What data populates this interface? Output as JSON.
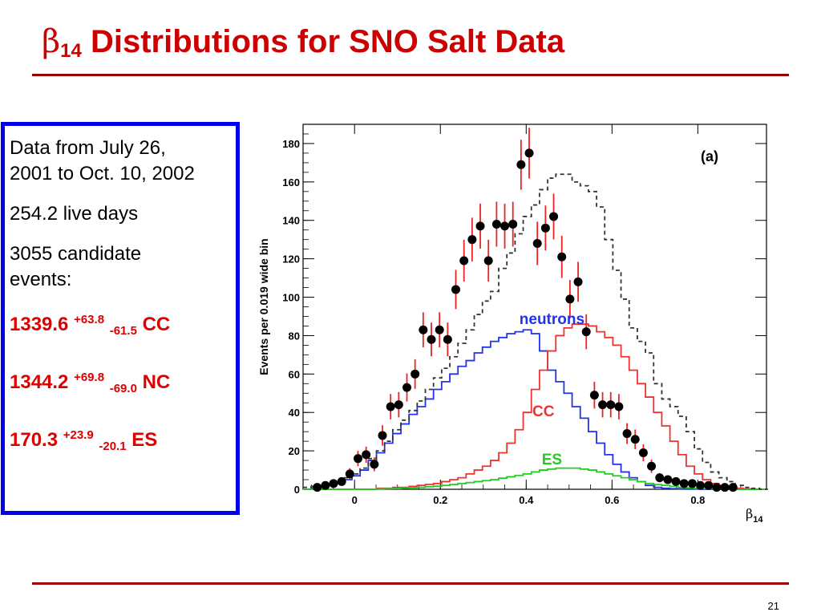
{
  "slide": {
    "title_symbol": "β",
    "title_subscript": "14",
    "title_text": " Distributions for SNO Salt Data",
    "page_number": "21"
  },
  "info_box": {
    "line1": "Data from July 26,",
    "line2": "2001 to Oct. 10, 2002",
    "live_days": "254.2 live days",
    "candidates_line1": "3055 candidate",
    "candidates_line2": "events:",
    "results": [
      {
        "value": "1339.6",
        "plus": "+63.8",
        "minus": "-61.5",
        "label": "CC"
      },
      {
        "value": "1344.2",
        "plus": "+69.8",
        "minus": "-69.0",
        "label": "NC"
      },
      {
        "value": "170.3",
        "plus": "+23.9",
        "minus": "-20.1",
        "label": "ES"
      }
    ]
  },
  "chart_data": {
    "type": "line",
    "panel_label": "(a)",
    "xlabel": "β",
    "xlabel_sub": "14",
    "ylabel": "Events per 0.019 wide bin",
    "xlim": [
      -0.12,
      0.96
    ],
    "ylim": [
      0,
      190
    ],
    "x_ticks": [
      "0",
      "0.2",
      "0.4",
      "0.6",
      "0.8"
    ],
    "x_tick_values": [
      0,
      0.2,
      0.4,
      0.6,
      0.8
    ],
    "y_ticks": [
      "0",
      "20",
      "40",
      "60",
      "80",
      "100",
      "120",
      "140",
      "160",
      "180"
    ],
    "y_tick_values": [
      0,
      20,
      40,
      60,
      80,
      100,
      120,
      140,
      160,
      180
    ],
    "bin_edges_start": -0.12,
    "bin_width": 0.019,
    "colors": {
      "total": "#333333",
      "neutrons": "#2233ee",
      "cc": "#ee3333",
      "es": "#22cc22",
      "data": "#000000",
      "errorbar": "#ee2222"
    },
    "series": [
      {
        "name": "neutrons",
        "values": [
          0,
          0.5,
          1,
          2,
          3,
          5,
          7,
          10,
          15,
          19,
          24,
          29,
          34,
          39,
          43,
          47,
          52,
          56,
          60,
          64,
          67,
          71,
          74,
          77,
          79,
          81,
          82,
          83,
          81,
          72,
          62,
          56,
          50,
          43,
          37,
          30,
          24,
          18,
          13,
          9,
          6,
          4,
          2,
          1,
          0.5,
          0.3,
          0.2,
          0.1,
          0.1,
          0,
          0,
          0,
          0,
          0,
          0,
          0,
          0
        ]
      },
      {
        "name": "CC",
        "values": [
          0,
          0,
          0,
          0,
          0,
          0,
          0,
          0,
          0,
          0.5,
          0.5,
          1,
          1,
          1.5,
          2,
          2.5,
          3,
          4,
          5,
          6,
          8,
          10,
          12,
          15,
          19,
          24,
          31,
          40,
          52,
          62,
          72,
          80,
          84,
          86,
          86,
          85,
          82,
          79,
          75,
          69,
          62,
          55,
          48,
          40,
          33,
          25,
          18,
          12,
          8,
          5,
          3,
          2,
          1,
          0.5,
          0.2,
          0.1,
          0
        ]
      },
      {
        "name": "ES",
        "values": [
          0,
          0,
          0,
          0,
          0,
          0,
          0,
          0,
          0,
          0.2,
          0.3,
          0.4,
          0.6,
          0.8,
          1,
          1.3,
          1.6,
          2,
          2.5,
          3,
          3.5,
          4,
          4.5,
          5,
          5.8,
          6.5,
          7.2,
          8,
          9,
          10,
          10.5,
          11,
          11,
          11,
          10.5,
          10,
          9,
          8,
          7,
          6,
          5,
          4,
          3,
          2.5,
          2,
          1.5,
          1,
          0.8,
          0.5,
          0.3,
          0.2,
          0.1,
          0,
          0,
          0,
          0,
          0
        ]
      },
      {
        "name": "total",
        "values": [
          1,
          1.5,
          2,
          2.5,
          4,
          6,
          8,
          11,
          16,
          20,
          25,
          31,
          36,
          41,
          46,
          52,
          58,
          63,
          69,
          76,
          83,
          91,
          98,
          103,
          115,
          123,
          133,
          142,
          148,
          156,
          162,
          164,
          164,
          160,
          158,
          155,
          147,
          130,
          114,
          99,
          84,
          77,
          71,
          55,
          47,
          43,
          38,
          30,
          21,
          14,
          9,
          6,
          4,
          2,
          1,
          0.5,
          0
        ]
      },
      {
        "name": "data",
        "x": [
          -0.087,
          -0.068,
          -0.049,
          -0.03,
          -0.011,
          0.008,
          0.027,
          0.046,
          0.065,
          0.084,
          0.103,
          0.122,
          0.141,
          0.16,
          0.179,
          0.198,
          0.217,
          0.236,
          0.255,
          0.274,
          0.293,
          0.312,
          0.331,
          0.35,
          0.369,
          0.388,
          0.407,
          0.426,
          0.445,
          0.464,
          0.483,
          0.502,
          0.521,
          0.54,
          0.559,
          0.578,
          0.597,
          0.616,
          0.635,
          0.654,
          0.673,
          0.692,
          0.711,
          0.73,
          0.749,
          0.768,
          0.787,
          0.806,
          0.825,
          0.844,
          0.863,
          0.882
        ],
        "y": [
          1,
          2,
          3,
          4,
          8,
          16,
          18,
          13,
          28,
          43,
          44,
          53,
          60,
          83,
          78,
          83,
          78,
          104,
          119,
          130,
          137,
          119,
          138,
          137,
          138,
          169,
          175,
          128,
          136,
          142,
          121,
          99,
          108,
          82,
          49,
          44,
          44,
          43,
          29,
          26,
          19,
          12,
          6,
          5,
          4,
          3,
          3,
          2,
          2,
          1,
          1,
          1
        ],
        "err": [
          1,
          1.5,
          2,
          2,
          3,
          4,
          4.2,
          3.6,
          5.3,
          6.6,
          6.6,
          7.3,
          7.7,
          9.1,
          8.8,
          9.1,
          8.8,
          10.2,
          10.9,
          11.4,
          11.7,
          10.9,
          11.7,
          11.7,
          11.7,
          13,
          13.2,
          11.3,
          11.7,
          11.9,
          11,
          9.9,
          10.4,
          9.1,
          7,
          6.6,
          6.6,
          6.6,
          5.4,
          5.1,
          4.4,
          3.5,
          2.4,
          2.2,
          2,
          1.7,
          1.7,
          1.4,
          1.4,
          1,
          1,
          1
        ]
      }
    ],
    "annotations": [
      {
        "text": "neutrons",
        "x": 0.46,
        "y": 86,
        "color": "#2233ee"
      },
      {
        "text": "CC",
        "x": 0.44,
        "y": 38,
        "color": "#ee3333"
      },
      {
        "text": "ES",
        "x": 0.46,
        "y": 13,
        "color": "#22cc22"
      }
    ],
    "grid": false,
    "legend": "none"
  }
}
